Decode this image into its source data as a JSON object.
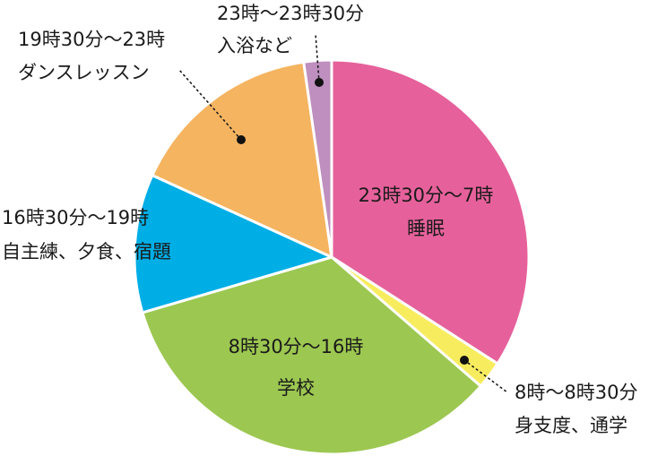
{
  "chart_data": {
    "type": "pie",
    "unit": "hours",
    "slices": [
      {
        "time": "23時30分〜7時",
        "activity": "睡眠",
        "value": 7.5,
        "color": "#e6619b"
      },
      {
        "time": "8時〜8時30分",
        "activity": "身支度、通学",
        "value": 0.5,
        "color": "#f7ec5e"
      },
      {
        "time": "8時30分〜16時",
        "activity": "学校",
        "value": 7.5,
        "color": "#9cc751"
      },
      {
        "time": "16時30分〜19時",
        "activity": "自主練、夕食、宿題",
        "value": 2.5,
        "color": "#00aee6"
      },
      {
        "time": "19時30分〜23時",
        "activity": "ダンスレッスン",
        "value": 3.5,
        "color": "#f5b460"
      },
      {
        "time": "23時〜23時30分",
        "activity": "入浴など",
        "value": 0.5,
        "color": "#be8fbf"
      }
    ]
  }
}
